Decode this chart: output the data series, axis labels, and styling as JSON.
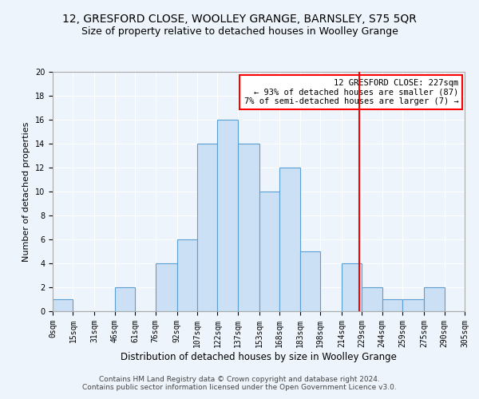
{
  "title1": "12, GRESFORD CLOSE, WOOLLEY GRANGE, BARNSLEY, S75 5QR",
  "title2": "Size of property relative to detached houses in Woolley Grange",
  "xlabel": "Distribution of detached houses by size in Woolley Grange",
  "ylabel": "Number of detached properties",
  "footer": "Contains HM Land Registry data © Crown copyright and database right 2024.\nContains public sector information licensed under the Open Government Licence v3.0.",
  "bin_edges": [
    0,
    15,
    31,
    46,
    61,
    76,
    92,
    107,
    122,
    137,
    153,
    168,
    183,
    198,
    214,
    229,
    244,
    259,
    275,
    290,
    305
  ],
  "bar_heights": [
    1,
    0,
    0,
    2,
    0,
    4,
    6,
    14,
    16,
    14,
    10,
    12,
    5,
    0,
    4,
    2,
    1,
    1,
    2,
    0
  ],
  "bar_color": "#cce0f5",
  "bar_edge_color": "#5a9fd4",
  "red_line_x": 227,
  "annotation_title": "12 GRESFORD CLOSE: 227sqm",
  "annotation_line1": "← 93% of detached houses are smaller (87)",
  "annotation_line2": "7% of semi-detached houses are larger (7) →",
  "ylim": [
    0,
    20
  ],
  "yticks": [
    0,
    2,
    4,
    6,
    8,
    10,
    12,
    14,
    16,
    18,
    20
  ],
  "background_color": "#eef4fb",
  "plot_background_color": "#eef4fb",
  "grid_color": "#ffffff",
  "title1_fontsize": 10,
  "title2_fontsize": 9,
  "xlabel_fontsize": 8.5,
  "ylabel_fontsize": 8,
  "tick_fontsize": 7,
  "annotation_fontsize": 7.5,
  "footer_fontsize": 6.5
}
